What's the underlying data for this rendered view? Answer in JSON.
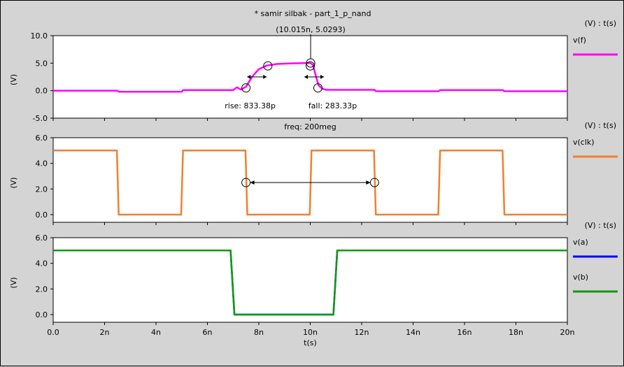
{
  "window": {
    "title": "* samir silbak - part_1_p_nand"
  },
  "colors": {
    "background": "#d4d4d4",
    "plot_area": "#ffffff",
    "vf": "#ff00ff",
    "vclk": "#f08030",
    "va": "#0000ff",
    "vb": "#119911"
  },
  "x_axis": {
    "label": "t(s)",
    "range": [
      0,
      20
    ],
    "unit_suffix": "n",
    "ticks": [
      {
        "value": 0,
        "label": "0.0"
      },
      {
        "value": 2,
        "label": "2n"
      },
      {
        "value": 4,
        "label": "4n"
      },
      {
        "value": 6,
        "label": "6n"
      },
      {
        "value": 8,
        "label": "8n"
      },
      {
        "value": 10,
        "label": "10n"
      },
      {
        "value": 12,
        "label": "12n"
      },
      {
        "value": 14,
        "label": "14n"
      },
      {
        "value": 16,
        "label": "16n"
      },
      {
        "value": 18,
        "label": "18n"
      },
      {
        "value": 20,
        "label": "20n"
      }
    ]
  },
  "chart_data": [
    {
      "type": "line",
      "panel_label": "(V) : t(s)",
      "ylabel": "(V)",
      "ylim": [
        -5,
        10
      ],
      "yticks": [
        {
          "value": 10,
          "label": "10.0"
        },
        {
          "value": 5,
          "label": "5.0"
        },
        {
          "value": 0,
          "label": "0.0"
        },
        {
          "value": -5,
          "label": "-5.0"
        }
      ],
      "series": [
        {
          "name": "v(f)",
          "color": "#ff00ff",
          "x": [
            0,
            2.5,
            2.55,
            5.0,
            5.05,
            7.0,
            7.15,
            7.3,
            7.5,
            7.75,
            8.0,
            8.3,
            8.7,
            9.2,
            9.7,
            10.0,
            10.1,
            10.2,
            10.32,
            10.45,
            10.6,
            12.5,
            12.55,
            15.0,
            15.05,
            17.5,
            17.55,
            20
          ],
          "y": [
            0,
            0,
            -0.2,
            -0.2,
            0.1,
            0.1,
            0.6,
            0.2,
            0.7,
            2.6,
            3.9,
            4.55,
            4.85,
            4.95,
            5.0,
            5.03,
            4.7,
            3.0,
            1.0,
            0.4,
            0.15,
            0.15,
            -0.1,
            -0.1,
            0.1,
            0.1,
            -0.1,
            -0.1
          ]
        }
      ],
      "annotations": [
        {
          "text": "(10.015n, 5.0293)",
          "x": 10.015,
          "y": 5.0293
        },
        {
          "text": "rise: 833.38p",
          "x1": 7.5,
          "y1": 0.5,
          "x2": 8.35,
          "y2": 4.5
        },
        {
          "text": "fall: 283.33p",
          "x1": 10.0,
          "y1": 4.5,
          "x2": 10.3,
          "y2": 0.5
        }
      ]
    },
    {
      "type": "line",
      "title": "freq: 200meg",
      "panel_label": "(V) : t(s)",
      "ylabel": "(V)",
      "ylim": [
        -0.6,
        6
      ],
      "yticks": [
        {
          "value": 6,
          "label": "6.0"
        },
        {
          "value": 4,
          "label": "4.0"
        },
        {
          "value": 2,
          "label": "2.0"
        },
        {
          "value": 0,
          "label": "0.0"
        }
      ],
      "series": [
        {
          "name": "v(clk)",
          "color": "#f08030",
          "x": [
            0,
            2.48,
            2.55,
            4.98,
            5.05,
            7.48,
            7.55,
            9.98,
            10.05,
            12.48,
            12.55,
            14.98,
            15.05,
            17.48,
            17.55,
            20
          ],
          "y": [
            5,
            5,
            0,
            0,
            5,
            5,
            0,
            0,
            5,
            5,
            0,
            0,
            5,
            5,
            0,
            0
          ]
        }
      ],
      "annotations": [
        {
          "text": "",
          "x1": 7.5,
          "y1": 2.5,
          "x2": 12.5,
          "y2": 2.5
        }
      ]
    },
    {
      "type": "line",
      "panel_label": "(V) : t(s)",
      "ylabel": "(V)",
      "ylim": [
        -0.6,
        6
      ],
      "yticks": [
        {
          "value": 6,
          "label": "6.0"
        },
        {
          "value": 4,
          "label": "4.0"
        },
        {
          "value": 2,
          "label": "2.0"
        },
        {
          "value": 0,
          "label": "0.0"
        }
      ],
      "series": [
        {
          "name": "v(a)",
          "color": "#0000ff",
          "x": [
            0,
            6.9,
            7.05,
            10.9,
            11.05,
            20
          ],
          "y": [
            5,
            5,
            0,
            0,
            5,
            5
          ]
        },
        {
          "name": "v(b)",
          "color": "#119911",
          "x": [
            0,
            6.9,
            7.05,
            10.9,
            11.05,
            20
          ],
          "y": [
            5,
            5,
            0,
            0,
            5,
            5
          ]
        }
      ]
    }
  ]
}
